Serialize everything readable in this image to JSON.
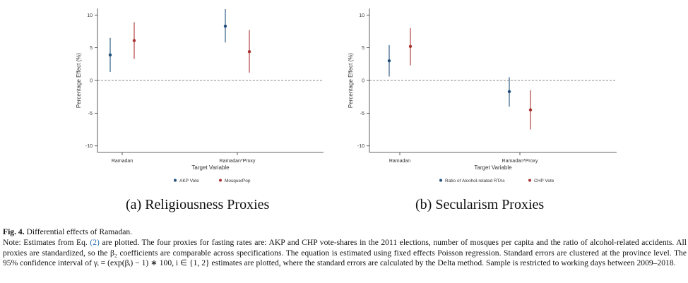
{
  "chart_data": [
    {
      "type": "scatter",
      "subtype": "point-with-error-bars",
      "caption": "(a) Religiousness Proxies",
      "xlabel": "Target Variable",
      "ylabel": "Percentage Effect (%)",
      "categories": [
        "Ramadan",
        "Ramadan*Proxy"
      ],
      "ylim": [
        -11,
        11
      ],
      "yticks": [
        "10",
        "5",
        "0",
        "-5",
        "-10"
      ],
      "ytick_values": [
        10,
        5,
        0,
        -5,
        -10
      ],
      "zero_line": "dashed",
      "grid": false,
      "legend_position": "bottom",
      "series": [
        {
          "name": "AKP Vote",
          "color": "#1f4e79",
          "values": [
            3.9,
            8.3
          ],
          "lower": [
            1.3,
            5.8
          ],
          "upper": [
            6.5,
            10.9
          ]
        },
        {
          "name": "Mosque/Pop",
          "color": "#a83232",
          "values": [
            6.1,
            4.4
          ],
          "lower": [
            3.3,
            1.2
          ],
          "upper": [
            8.9,
            7.7
          ]
        }
      ]
    },
    {
      "type": "scatter",
      "subtype": "point-with-error-bars",
      "caption": "(b) Secularism Proxies",
      "xlabel": "Target Variable",
      "ylabel": "Percentage Effect (%)",
      "categories": [
        "Ramadan",
        "Ramadan*Proxy"
      ],
      "ylim": [
        -11,
        11
      ],
      "yticks": [
        "10",
        "5",
        "0",
        "-5",
        "-10"
      ],
      "ytick_values": [
        10,
        5,
        0,
        -5,
        -10
      ],
      "zero_line": "dashed",
      "grid": false,
      "legend_position": "bottom",
      "series": [
        {
          "name": "Ratio of Alcohol-related RTAs",
          "color": "#1f4e79",
          "values": [
            3.0,
            -1.7
          ],
          "lower": [
            0.6,
            -4.0
          ],
          "upper": [
            5.4,
            0.5
          ]
        },
        {
          "name": "CHP Vote",
          "color": "#a83232",
          "values": [
            5.2,
            -4.5
          ],
          "lower": [
            2.3,
            -7.5
          ],
          "upper": [
            8.0,
            -1.5
          ]
        }
      ]
    }
  ],
  "figure": {
    "label": "Fig. 4.",
    "title": "Differential effects of Ramadan.",
    "note_prefix": "Note: Estimates from Eq.",
    "eq_ref": "(2)",
    "note_body": "are plotted. The four proxies for fasting rates are: AKP and CHP vote-shares in the 2011 elections, number of mosques per capita and the ratio of alcohol-related accidents. All proxies are standardized, so the β₂ coefficients are comparable across specifications. The equation is estimated using fixed effects Poisson regression. Standard errors are clustered at the province level. The 95% confidence interval of γᵢ = (exp(βᵢ) − 1) ∗ 100, i ∈ {1, 2} estimates are plotted, where the standard errors are calculated by the Delta method. Sample is restricted to working days between 2009–2018."
  }
}
